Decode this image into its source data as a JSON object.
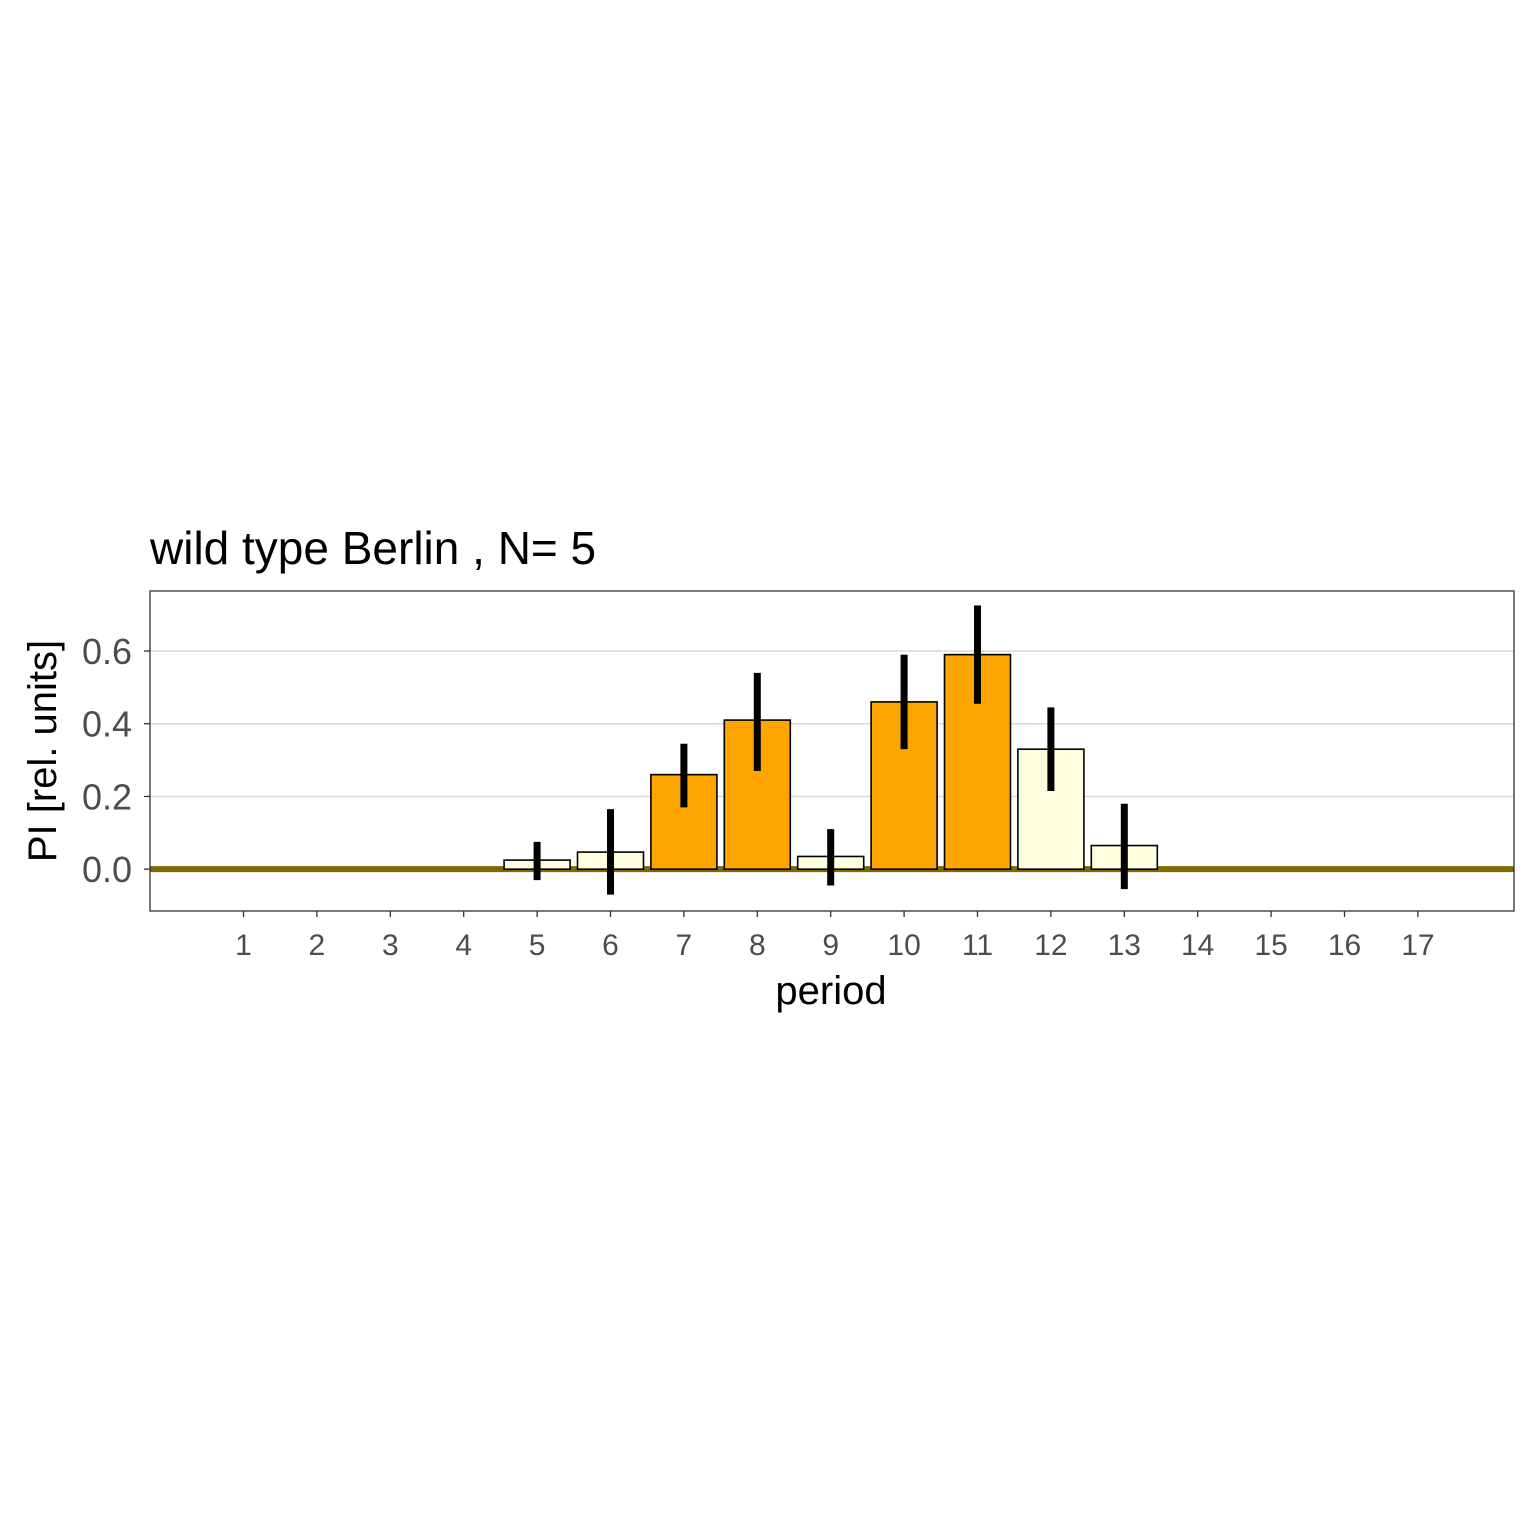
{
  "chart_data": {
    "type": "bar",
    "title": "wild type Berlin , N= 5",
    "xlabel": "period",
    "ylabel": "PI [rel. units]",
    "categories": [
      "1",
      "2",
      "3",
      "4",
      "5",
      "6",
      "7",
      "8",
      "9",
      "10",
      "11",
      "12",
      "13",
      "14",
      "15",
      "16",
      "17"
    ],
    "values": [
      null,
      null,
      null,
      null,
      0.025,
      0.047,
      0.26,
      0.41,
      0.035,
      0.46,
      0.59,
      0.33,
      0.065,
      null,
      null,
      null,
      null
    ],
    "error_low": [
      null,
      null,
      null,
      null,
      -0.03,
      -0.07,
      0.17,
      0.27,
      -0.045,
      0.33,
      0.455,
      0.215,
      -0.055,
      null,
      null,
      null,
      null
    ],
    "error_high": [
      null,
      null,
      null,
      null,
      0.075,
      0.165,
      0.345,
      0.54,
      0.11,
      0.59,
      0.725,
      0.445,
      0.18,
      null,
      null,
      null,
      null
    ],
    "fill_type": [
      null,
      null,
      null,
      null,
      "light",
      "light",
      "dark",
      "dark",
      "light",
      "dark",
      "dark",
      "light",
      "light",
      null,
      null,
      null,
      null
    ],
    "colors": {
      "dark": "#FFA500",
      "light": "#FFFFE0",
      "baseline": "#7F6A00",
      "grid": "#d9d9d9",
      "errorbar": "#000000"
    },
    "yticks": [
      0.0,
      0.2,
      0.4,
      0.6
    ],
    "ytick_labels": [
      "0.0",
      "0.2",
      "0.4",
      "0.6"
    ],
    "ylim": [
      -0.115,
      0.765
    ],
    "grid": true,
    "baseline": 0
  }
}
